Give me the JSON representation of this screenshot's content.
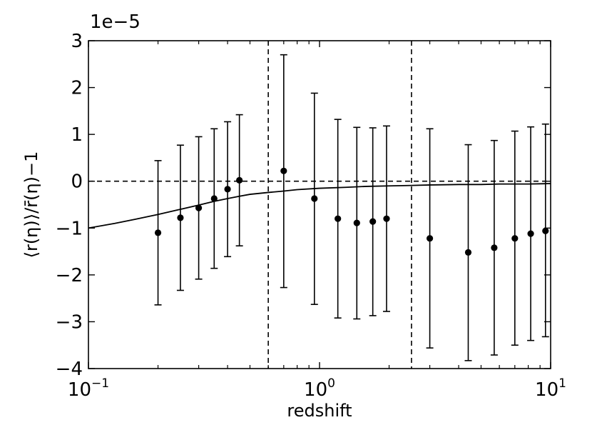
{
  "chart_data": {
    "type": "scatter",
    "xlabel": "redshift",
    "ylabel": "⟨r(η)⟩/r̄(η)−1",
    "offset_text": "1e−5",
    "x_scale": "log",
    "xlim": [
      0.1,
      10
    ],
    "ylim": [
      -4,
      3
    ],
    "y_unit_multiplier": 1e-05,
    "x_ticks": [
      {
        "base": "10",
        "exp": "−1",
        "value": 0.1
      },
      {
        "base": "10",
        "exp": "0",
        "value": 1
      },
      {
        "base": "10",
        "exp": "1",
        "value": 10
      }
    ],
    "y_ticks": [
      {
        "label": "−4",
        "value": -4
      },
      {
        "label": "−3",
        "value": -3
      },
      {
        "label": "−2",
        "value": -2
      },
      {
        "label": "−1",
        "value": -1
      },
      {
        "label": "0",
        "value": 0
      },
      {
        "label": "1",
        "value": 1
      },
      {
        "label": "2",
        "value": 2
      },
      {
        "label": "3",
        "value": 3
      }
    ],
    "points": [
      {
        "x": 0.2,
        "y": -1.1,
        "yerr_low": -2.64,
        "yerr_high": 0.44
      },
      {
        "x": 0.25,
        "y": -0.78,
        "yerr_low": -2.33,
        "yerr_high": 0.77
      },
      {
        "x": 0.3,
        "y": -0.57,
        "yerr_low": -2.09,
        "yerr_high": 0.95
      },
      {
        "x": 0.35,
        "y": -0.37,
        "yerr_low": -1.86,
        "yerr_high": 1.12
      },
      {
        "x": 0.4,
        "y": -0.17,
        "yerr_low": -1.61,
        "yerr_high": 1.27
      },
      {
        "x": 0.45,
        "y": 0.02,
        "yerr_low": -1.38,
        "yerr_high": 1.42
      },
      {
        "x": 0.7,
        "y": 0.22,
        "yerr_low": -2.27,
        "yerr_high": 2.7
      },
      {
        "x": 0.95,
        "y": -0.37,
        "yerr_low": -2.63,
        "yerr_high": 1.88
      },
      {
        "x": 1.2,
        "y": -0.8,
        "yerr_low": -2.92,
        "yerr_high": 1.32
      },
      {
        "x": 1.45,
        "y": -0.89,
        "yerr_low": -2.94,
        "yerr_high": 1.15
      },
      {
        "x": 1.7,
        "y": -0.86,
        "yerr_low": -2.87,
        "yerr_high": 1.14
      },
      {
        "x": 1.95,
        "y": -0.8,
        "yerr_low": -2.78,
        "yerr_high": 1.18
      },
      {
        "x": 3.0,
        "y": -1.22,
        "yerr_low": -3.56,
        "yerr_high": 1.12
      },
      {
        "x": 4.4,
        "y": -1.52,
        "yerr_low": -3.83,
        "yerr_high": 0.78
      },
      {
        "x": 5.7,
        "y": -1.42,
        "yerr_low": -3.71,
        "yerr_high": 0.87
      },
      {
        "x": 7.0,
        "y": -1.22,
        "yerr_low": -3.5,
        "yerr_high": 1.07
      },
      {
        "x": 8.2,
        "y": -1.12,
        "yerr_low": -3.4,
        "yerr_high": 1.16
      },
      {
        "x": 9.5,
        "y": -1.06,
        "yerr_low": -3.32,
        "yerr_high": 1.22
      }
    ],
    "model_curve": {
      "style": "solid",
      "x": [
        0.1,
        0.13,
        0.16,
        0.2,
        0.25,
        0.3,
        0.35,
        0.4,
        0.45,
        0.5,
        0.6,
        0.7,
        0.8,
        1.0,
        1.3,
        1.6,
        2.0,
        2.5,
        3.0,
        4.0,
        5.0,
        6.0,
        8.0,
        10.0
      ],
      "y": [
        -1.0,
        -0.9,
        -0.81,
        -0.71,
        -0.6,
        -0.51,
        -0.43,
        -0.37,
        -0.32,
        -0.28,
        -0.24,
        -0.21,
        -0.18,
        -0.15,
        -0.13,
        -0.11,
        -0.1,
        -0.09,
        -0.08,
        -0.07,
        -0.07,
        -0.06,
        -0.06,
        -0.05
      ]
    },
    "reference_lines": {
      "horizontal_dashed_y": 0,
      "vertical_dashed_x": [
        0.6,
        2.5
      ]
    },
    "grid": false,
    "legend": "none"
  }
}
